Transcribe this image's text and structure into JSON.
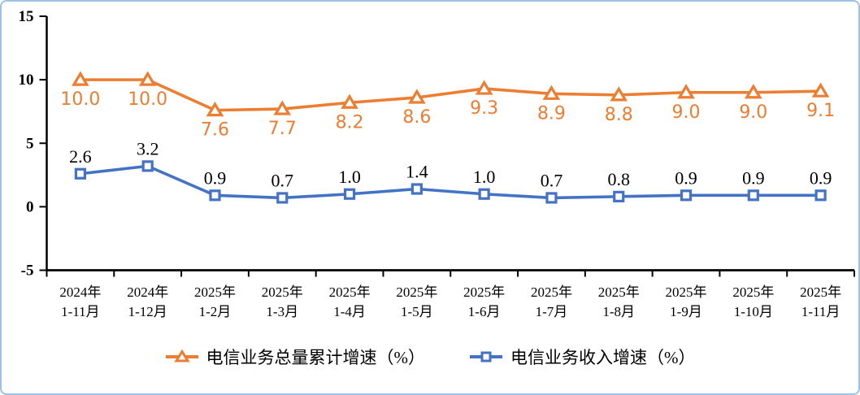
{
  "figure": {
    "border_color": "#9CC2E5",
    "background": "#FFFFFF"
  },
  "chart_data": {
    "type": "line",
    "title": "",
    "xlabel": "",
    "ylabel": "",
    "grid": false,
    "legend_position": "bottom",
    "y_axis": {
      "min": -5,
      "max": 15,
      "ticks": [
        15,
        10,
        5,
        0,
        -5
      ]
    },
    "categories": [
      "2024年1-11月",
      "2024年1-12月",
      "2025年1-2月",
      "2025年1-3月",
      "2025年1-4月",
      "2025年1-5月",
      "2025年1-6月",
      "2025年1-7月",
      "2025年1-8月",
      "2025年1-9月",
      "2025年1-10月",
      "2025年1-11月"
    ],
    "categories_line1": [
      "2024年",
      "2024年",
      "2025年",
      "2025年",
      "2025年",
      "2025年",
      "2025年",
      "2025年",
      "2025年",
      "2025年",
      "2025年",
      "2025年"
    ],
    "categories_line2": [
      "1-11月",
      "1-12月",
      "1-2月",
      "1-3月",
      "1-4月",
      "1-5月",
      "1-6月",
      "1-7月",
      "1-8月",
      "1-9月",
      "1-10月",
      "1-11月"
    ],
    "series": [
      {
        "name": "电信业务总量累计增速（%）",
        "marker": "triangle",
        "color": "#ED7D31",
        "label_color": "#ED7D31",
        "label_position": "below",
        "values": [
          10.0,
          10.0,
          7.6,
          7.7,
          8.2,
          8.6,
          9.3,
          8.9,
          8.8,
          9.0,
          9.0,
          9.1
        ]
      },
      {
        "name": "电信业务收入增速（%）",
        "marker": "square",
        "color": "#4472C4",
        "label_color": "#000000",
        "label_position": "above",
        "values": [
          2.6,
          3.2,
          0.9,
          0.7,
          1.0,
          1.4,
          1.0,
          0.7,
          0.8,
          0.9,
          0.9,
          0.9
        ]
      }
    ]
  }
}
